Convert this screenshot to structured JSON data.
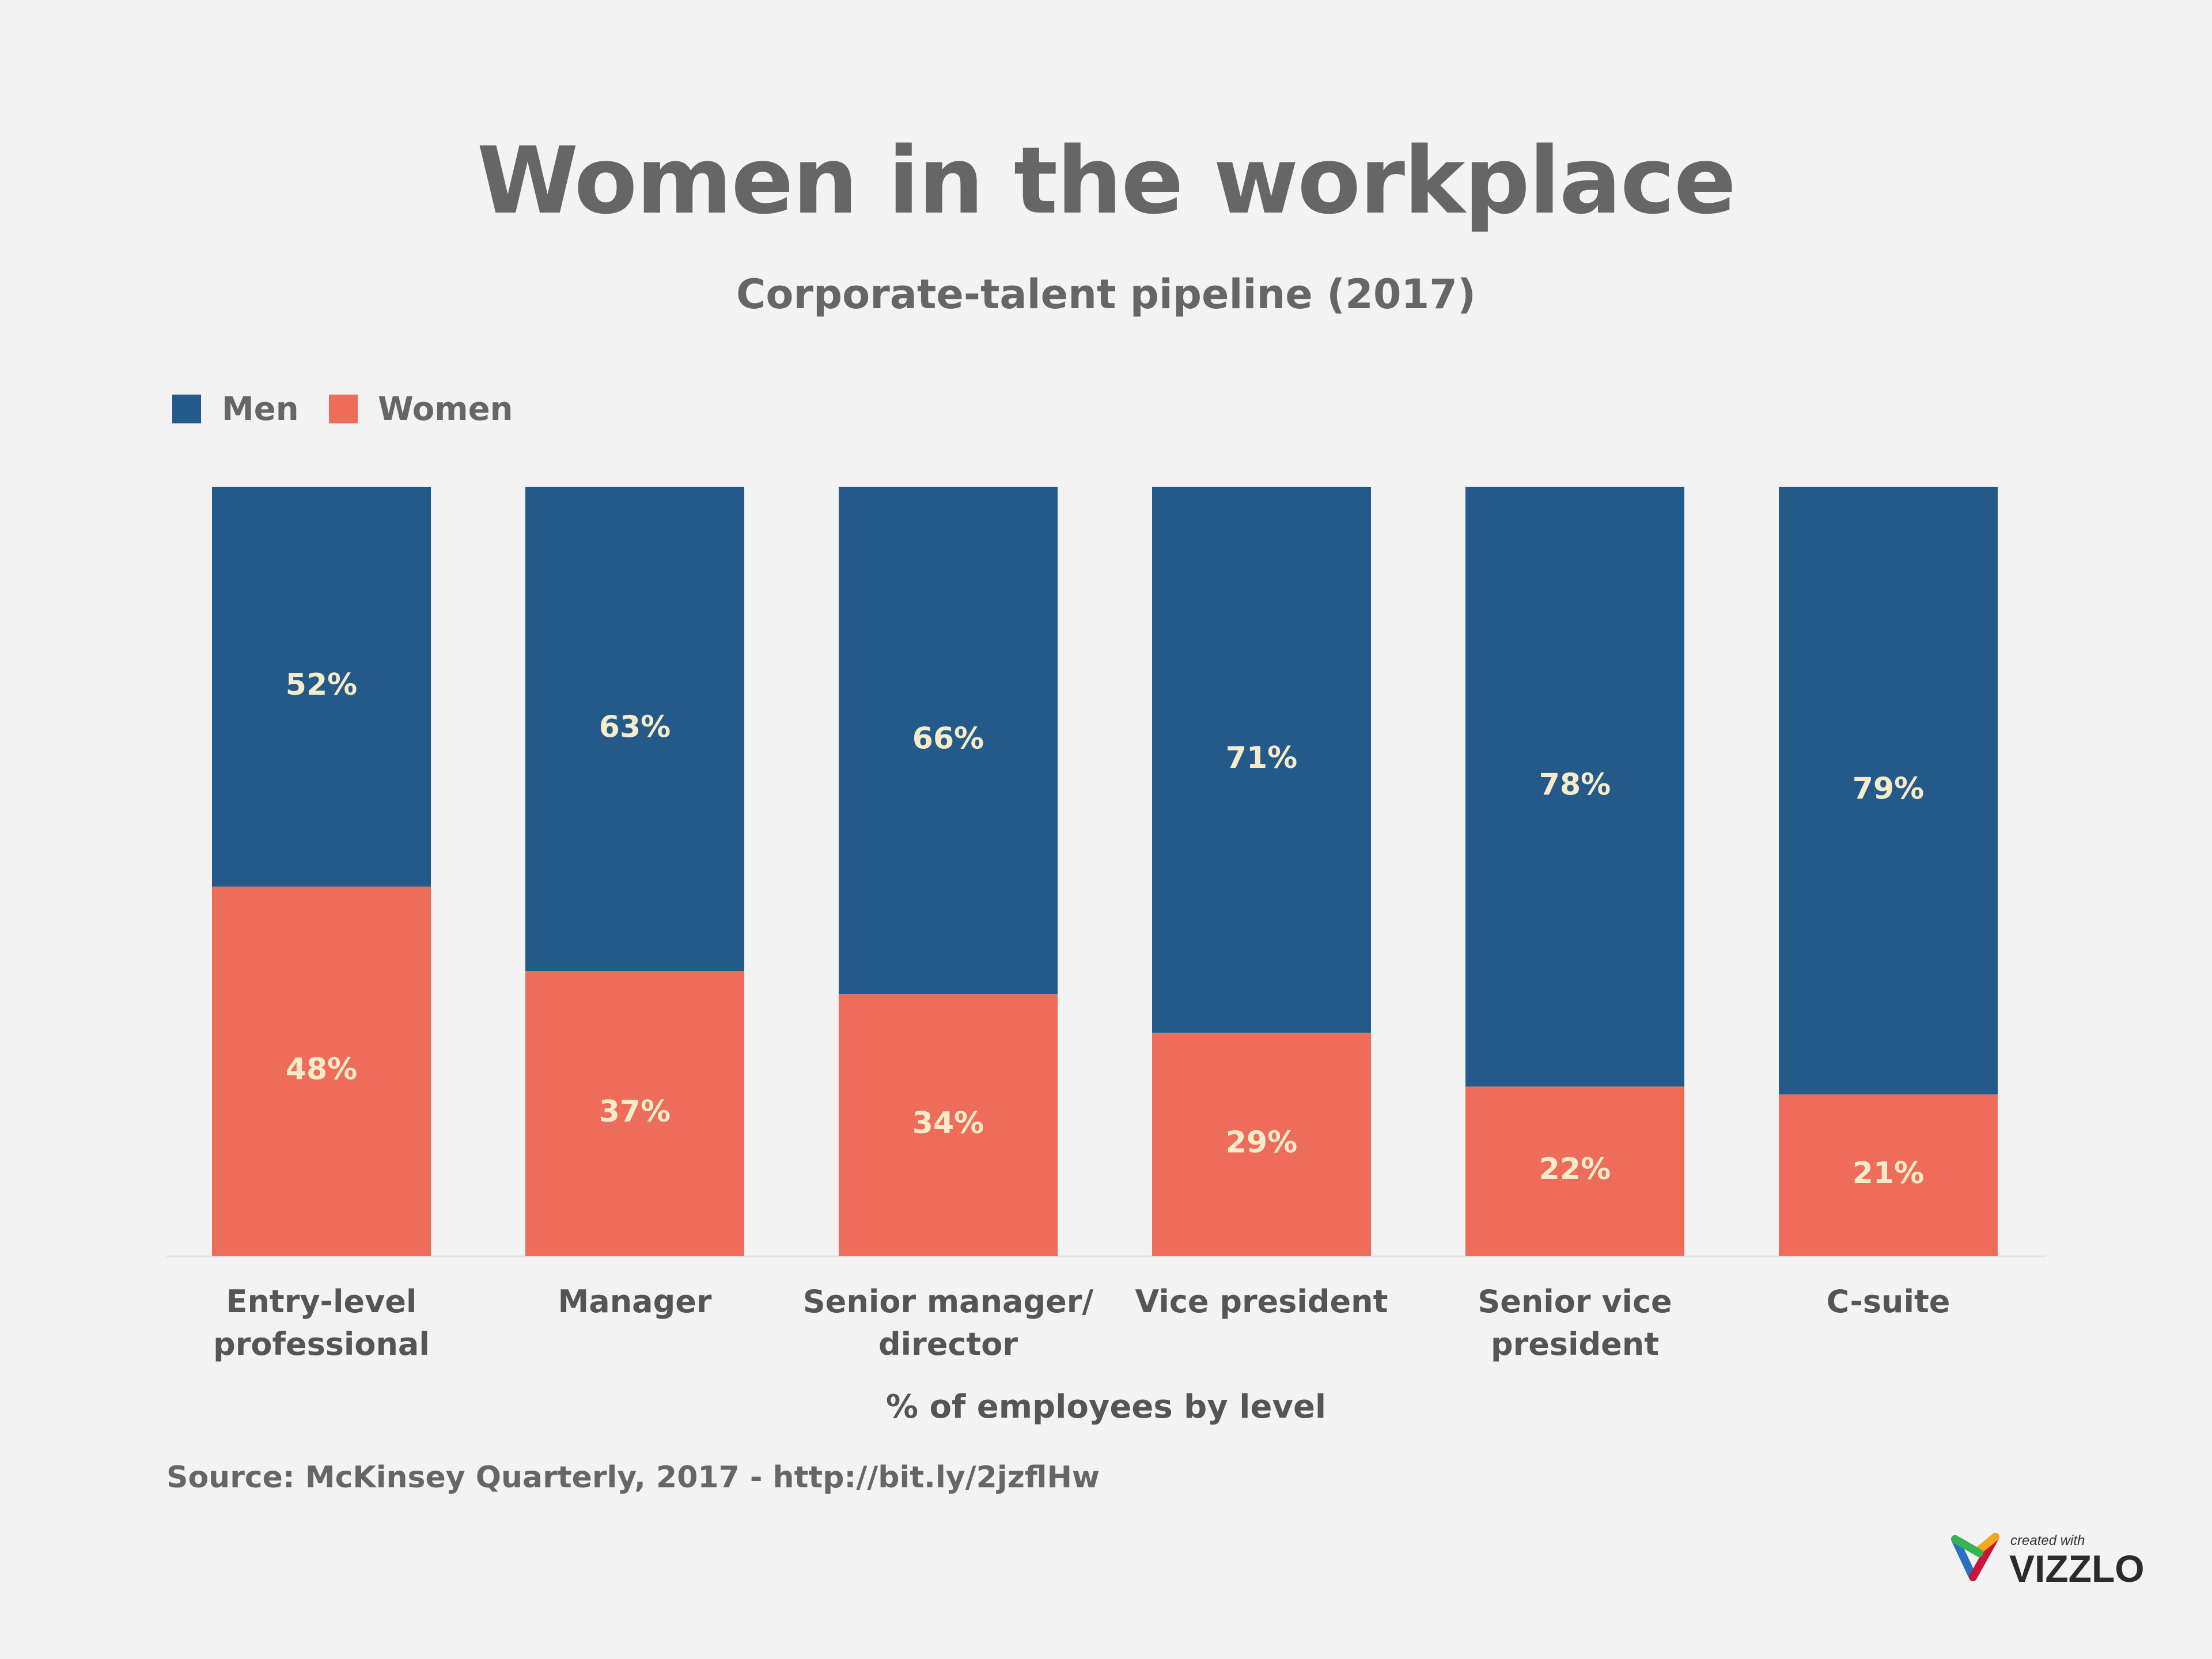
{
  "chart_data": {
    "type": "bar",
    "stacked": true,
    "title": "Women in the workplace",
    "subtitle": "Corporate-talent pipeline (2017)",
    "xlabel": "% of employees by level",
    "ylabel": "",
    "ylim": [
      0,
      100
    ],
    "grid": false,
    "legend_position": "top-left",
    "categories": [
      [
        "Entry-level",
        "professional"
      ],
      [
        "Manager"
      ],
      [
        "Senior manager/",
        "director"
      ],
      [
        "Vice president"
      ],
      [
        "Senior vice",
        "president"
      ],
      [
        "C-suite"
      ]
    ],
    "series": [
      {
        "name": "Men",
        "color": "#245a8a",
        "values": [
          52,
          63,
          66,
          71,
          78,
          79
        ],
        "labels": [
          "52%",
          "63%",
          "66%",
          "71%",
          "78%",
          "79%"
        ]
      },
      {
        "name": "Women",
        "color": "#ed6d5a",
        "values": [
          48,
          37,
          34,
          29,
          22,
          21
        ],
        "labels": [
          "48%",
          "37%",
          "34%",
          "29%",
          "22%",
          "21%"
        ]
      }
    ],
    "source": "Source: McKinsey Quarterly, 2017 - http://bit.ly/2jzflHw"
  },
  "branding": {
    "created_with": "created with",
    "brand": "VIZZLO"
  }
}
